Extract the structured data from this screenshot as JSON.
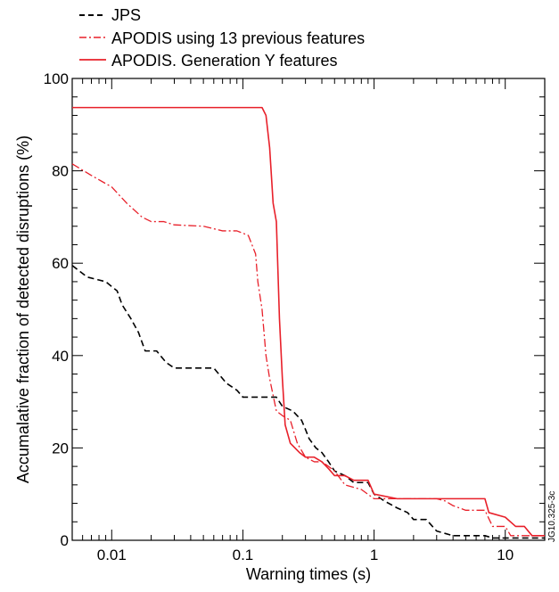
{
  "figure_id": "JG10.325-3c",
  "chart_data": {
    "type": "line",
    "xlabel": "Warning times (s)",
    "ylabel": "Accumalative fraction of detected disruptions  (%)",
    "xscale": "log",
    "xlim": [
      0.005,
      20
    ],
    "ylim": [
      0,
      100
    ],
    "x_ticks": [
      0.01,
      0.1,
      1,
      10
    ],
    "x_tick_labels": [
      "0.01",
      "0.1",
      "1",
      "10"
    ],
    "y_ticks": [
      0,
      20,
      40,
      60,
      80,
      100
    ],
    "y_tick_labels": [
      "0",
      "20",
      "40",
      "60",
      "80",
      "100"
    ],
    "grid": false,
    "legend_position": "top-left, above plot",
    "series": [
      {
        "name": "JPS",
        "style": "dashed",
        "color": "#000000",
        "points": [
          [
            0.005,
            59.5
          ],
          [
            0.0065,
            57
          ],
          [
            0.009,
            56
          ],
          [
            0.011,
            54
          ],
          [
            0.012,
            51
          ],
          [
            0.014,
            48
          ],
          [
            0.016,
            45
          ],
          [
            0.018,
            41
          ],
          [
            0.022,
            41
          ],
          [
            0.026,
            38.5
          ],
          [
            0.03,
            37.3
          ],
          [
            0.05,
            37.3
          ],
          [
            0.06,
            37.3
          ],
          [
            0.075,
            34
          ],
          [
            0.09,
            32.5
          ],
          [
            0.1,
            31
          ],
          [
            0.18,
            31
          ],
          [
            0.2,
            29
          ],
          [
            0.24,
            28
          ],
          [
            0.28,
            26
          ],
          [
            0.3,
            24
          ],
          [
            0.32,
            22
          ],
          [
            0.36,
            20
          ],
          [
            0.4,
            19
          ],
          [
            0.45,
            17
          ],
          [
            0.5,
            15
          ],
          [
            0.6,
            14
          ],
          [
            0.7,
            12.5
          ],
          [
            0.9,
            12.5
          ],
          [
            1.0,
            10
          ],
          [
            1.2,
            8.5
          ],
          [
            1.5,
            7
          ],
          [
            1.8,
            6
          ],
          [
            2.0,
            4.5
          ],
          [
            2.5,
            4.5
          ],
          [
            3.0,
            2
          ],
          [
            4.0,
            1
          ],
          [
            5.0,
            1
          ],
          [
            7.0,
            1
          ],
          [
            8.0,
            0.5
          ],
          [
            20,
            0.5
          ]
        ]
      },
      {
        "name": "APODIS using 13 previous features",
        "style": "dashdot",
        "color": "#e8202a",
        "points": [
          [
            0.005,
            81.5
          ],
          [
            0.007,
            79
          ],
          [
            0.01,
            76.5
          ],
          [
            0.013,
            73
          ],
          [
            0.017,
            70
          ],
          [
            0.02,
            69
          ],
          [
            0.025,
            69
          ],
          [
            0.03,
            68.3
          ],
          [
            0.05,
            68
          ],
          [
            0.07,
            67
          ],
          [
            0.09,
            67
          ],
          [
            0.1,
            66.5
          ],
          [
            0.11,
            66
          ],
          [
            0.125,
            62
          ],
          [
            0.13,
            56
          ],
          [
            0.14,
            50
          ],
          [
            0.15,
            40
          ],
          [
            0.16,
            35
          ],
          [
            0.18,
            28
          ],
          [
            0.2,
            27
          ],
          [
            0.23,
            26
          ],
          [
            0.26,
            21
          ],
          [
            0.3,
            18
          ],
          [
            0.35,
            17
          ],
          [
            0.4,
            17
          ],
          [
            0.45,
            16
          ],
          [
            0.5,
            15
          ],
          [
            0.6,
            12
          ],
          [
            0.8,
            11
          ],
          [
            1.0,
            9
          ],
          [
            1.5,
            9
          ],
          [
            2.0,
            9
          ],
          [
            3.0,
            9
          ],
          [
            3.5,
            8.5
          ],
          [
            4.0,
            7.5
          ],
          [
            5.0,
            6.5
          ],
          [
            7.0,
            6.5
          ],
          [
            8.0,
            3
          ],
          [
            10,
            3
          ],
          [
            11,
            1
          ],
          [
            20,
            1
          ]
        ]
      },
      {
        "name": "APODIS. Generation Y features",
        "style": "solid",
        "color": "#e8202a",
        "points": [
          [
            0.005,
            93.7
          ],
          [
            0.14,
            93.7
          ],
          [
            0.15,
            92
          ],
          [
            0.16,
            85
          ],
          [
            0.17,
            73
          ],
          [
            0.18,
            69
          ],
          [
            0.19,
            48
          ],
          [
            0.2,
            35
          ],
          [
            0.21,
            25
          ],
          [
            0.23,
            21
          ],
          [
            0.27,
            19
          ],
          [
            0.3,
            18
          ],
          [
            0.35,
            18
          ],
          [
            0.4,
            17
          ],
          [
            0.45,
            15.5
          ],
          [
            0.5,
            14
          ],
          [
            0.6,
            14
          ],
          [
            0.7,
            13
          ],
          [
            0.9,
            13
          ],
          [
            1.0,
            10
          ],
          [
            1.5,
            9
          ],
          [
            2.0,
            9
          ],
          [
            2.5,
            9
          ],
          [
            3.0,
            9
          ],
          [
            5.0,
            9
          ],
          [
            7.0,
            9
          ],
          [
            7.5,
            6
          ],
          [
            10,
            5
          ],
          [
            12,
            3
          ],
          [
            14,
            3
          ],
          [
            16,
            1
          ],
          [
            20,
            1
          ]
        ]
      }
    ]
  }
}
